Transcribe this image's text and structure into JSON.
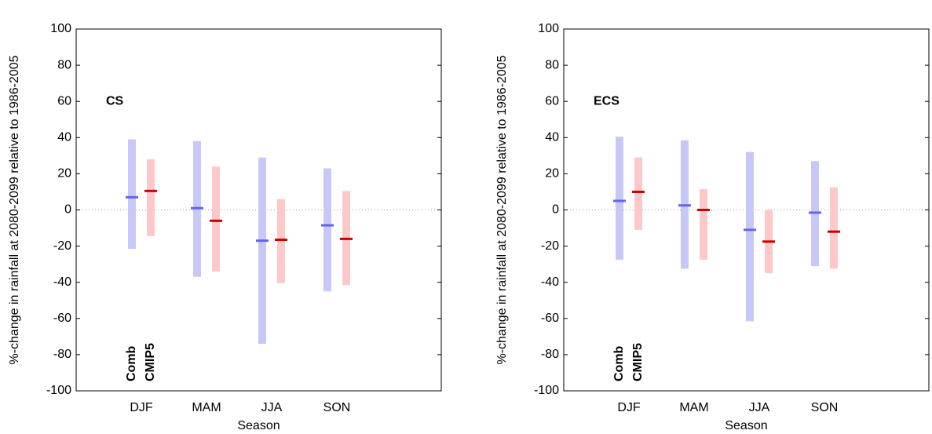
{
  "chart_data": [
    {
      "type": "range",
      "annotation": "CS",
      "y_label": "%-change in rainfall at 2080-2099 relative to 1986-2005",
      "x_label": "Season",
      "categories": [
        "DJF",
        "MAM",
        "JJA",
        "SON"
      ],
      "ylim": [
        -100,
        100
      ],
      "yticks": [
        -100,
        -80,
        -60,
        -40,
        -20,
        0,
        20,
        40,
        60,
        80,
        100
      ],
      "series": [
        {
          "name": "Comb",
          "color": "#c8c8f8",
          "median_color": "#6464ec",
          "low": [
            -21.5,
            -37,
            -74,
            -45
          ],
          "high": [
            39,
            38,
            29,
            23
          ],
          "median": [
            7,
            1,
            -17,
            -8.5
          ]
        },
        {
          "name": "CMIP5",
          "color": "#fcc8c8",
          "median_color": "#cc0000",
          "low": [
            -14.5,
            -34,
            -40.5,
            -41.5
          ],
          "high": [
            28,
            24,
            6,
            10.5
          ],
          "median": [
            10.5,
            -6,
            -16.5,
            -16
          ]
        }
      ]
    },
    {
      "type": "range",
      "annotation": "ECS",
      "y_label": "%-change in rainfall at 2080-2099 relative to 1986-2005",
      "x_label": "Season",
      "categories": [
        "DJF",
        "MAM",
        "JJA",
        "SON"
      ],
      "ylim": [
        -100,
        100
      ],
      "yticks": [
        -100,
        -80,
        -60,
        -40,
        -20,
        0,
        20,
        40,
        60,
        80,
        100
      ],
      "series": [
        {
          "name": "Comb",
          "color": "#c8c8f8",
          "median_color": "#6464ec",
          "low": [
            -27.5,
            -32.5,
            -61.5,
            -31
          ],
          "high": [
            40.5,
            38.5,
            32,
            27
          ],
          "median": [
            5,
            2.5,
            -11,
            -1.5
          ]
        },
        {
          "name": "CMIP5",
          "color": "#fcc8c8",
          "median_color": "#cc0000",
          "low": [
            -11,
            -27.5,
            -35,
            -32.5
          ],
          "high": [
            29,
            11.5,
            0,
            12.5
          ],
          "median": [
            10,
            0,
            -17.5,
            -12
          ]
        }
      ]
    }
  ]
}
